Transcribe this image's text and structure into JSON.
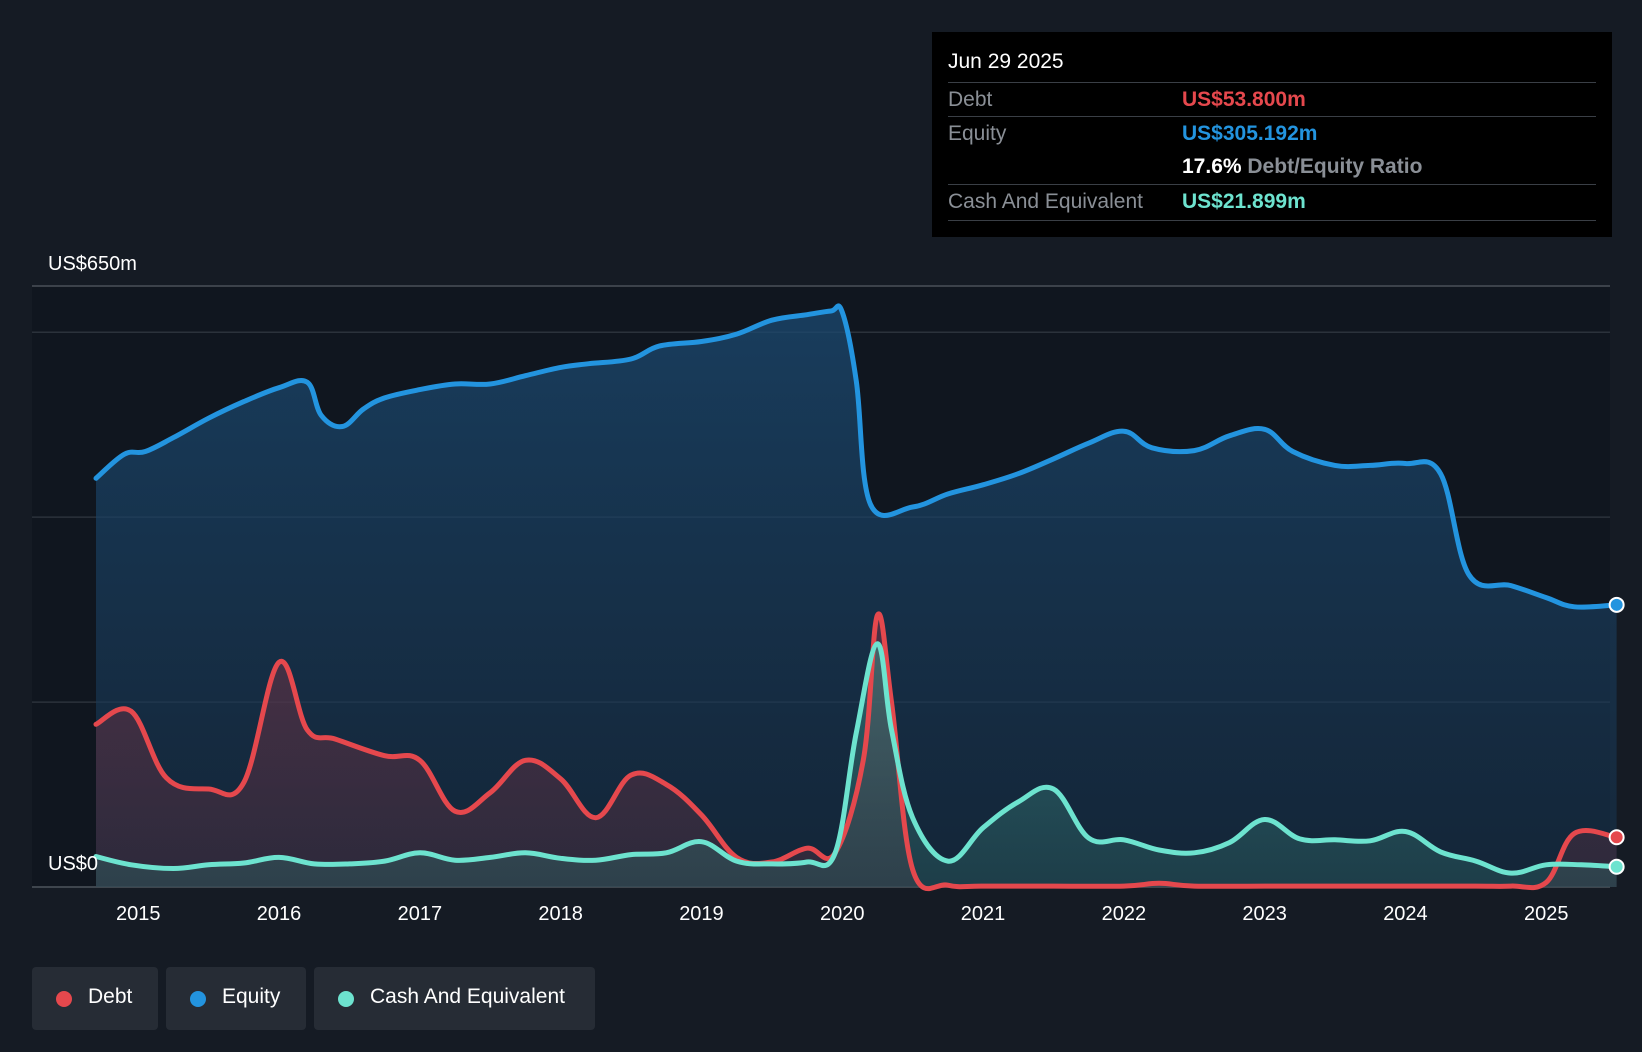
{
  "chart_data": {
    "type": "area",
    "tooltip": {
      "date": "Jun 29 2025",
      "rows": [
        {
          "label": "Debt",
          "value": "US$53.800m"
        },
        {
          "label": "Equity",
          "value": "US$305.192m"
        },
        {
          "label": "",
          "ratio_pct": "17.6%",
          "ratio_label": "Debt/Equity Ratio"
        },
        {
          "label": "Cash And Equivalent",
          "value": "US$21.899m"
        }
      ]
    },
    "y_label_top": "US$650m",
    "y_label_bottom": "US$0",
    "ylim": [
      0,
      650
    ],
    "xlim": [
      2014.7,
      2025.5
    ],
    "x_ticks": [
      "2015",
      "2016",
      "2017",
      "2018",
      "2019",
      "2020",
      "2021",
      "2022",
      "2023",
      "2024",
      "2025"
    ],
    "colors": {
      "debt": "#e5484d",
      "equity": "#2394df",
      "cash": "#6de3cf"
    },
    "series": [
      {
        "name": "Equity",
        "key": "equity",
        "x": [
          2014.7,
          2014.9,
          2015.05,
          2015.25,
          2015.5,
          2015.75,
          2016.0,
          2016.2,
          2016.3,
          2016.45,
          2016.6,
          2016.75,
          2017.0,
          2017.25,
          2017.5,
          2017.75,
          2018.0,
          2018.2,
          2018.5,
          2018.7,
          2019.0,
          2019.25,
          2019.5,
          2019.75,
          2019.92,
          2020.0,
          2020.1,
          2020.2,
          2020.5,
          2020.75,
          2021.0,
          2021.25,
          2021.5,
          2021.75,
          2022.0,
          2022.2,
          2022.5,
          2022.75,
          2023.0,
          2023.2,
          2023.5,
          2023.75,
          2024.0,
          2024.25,
          2024.45,
          2024.75,
          2025.0,
          2025.2,
          2025.5
        ],
        "values": [
          442,
          468,
          471,
          486,
          507,
          525,
          540,
          546,
          510,
          498,
          517,
          529,
          538,
          544,
          544,
          553,
          562,
          566,
          571,
          585,
          590,
          598,
          613,
          619,
          623,
          622,
          547,
          414,
          411,
          425,
          435,
          447,
          463,
          480,
          493,
          475,
          472,
          488,
          495,
          471,
          456,
          456,
          458,
          447,
          338,
          326,
          313,
          303,
          305.192
        ]
      },
      {
        "name": "Debt",
        "key": "debt",
        "x": [
          2014.7,
          2014.95,
          2015.2,
          2015.5,
          2015.75,
          2016.0,
          2016.2,
          2016.4,
          2016.75,
          2017.0,
          2017.25,
          2017.5,
          2017.75,
          2018.0,
          2018.25,
          2018.5,
          2018.75,
          2019.0,
          2019.25,
          2019.5,
          2019.75,
          2019.95,
          2020.15,
          2020.25,
          2020.35,
          2020.5,
          2020.75,
          2021.0,
          2021.5,
          2022.0,
          2022.25,
          2022.5,
          2023.0,
          2023.5,
          2024.0,
          2024.5,
          2024.75,
          2025.0,
          2025.2,
          2025.5
        ],
        "values": [
          176,
          190,
          118,
          106,
          113,
          243,
          170,
          160,
          142,
          137,
          82,
          102,
          137,
          117,
          75,
          121,
          111,
          78,
          32,
          27,
          42,
          37,
          138,
          294,
          200,
          19,
          2,
          1,
          1,
          1,
          4,
          1,
          1,
          1,
          1,
          1,
          1,
          5,
          58,
          53.8
        ]
      },
      {
        "name": "Cash And Equivalent",
        "key": "cash",
        "x": [
          2014.7,
          2014.95,
          2015.25,
          2015.5,
          2015.75,
          2016.0,
          2016.25,
          2016.5,
          2016.75,
          2017.0,
          2017.25,
          2017.5,
          2017.75,
          2018.0,
          2018.25,
          2018.5,
          2018.75,
          2019.0,
          2019.25,
          2019.5,
          2019.75,
          2019.95,
          2020.1,
          2020.25,
          2020.35,
          2020.5,
          2020.75,
          2021.0,
          2021.25,
          2021.5,
          2021.75,
          2022.0,
          2022.25,
          2022.5,
          2022.75,
          2023.0,
          2023.25,
          2023.5,
          2023.75,
          2024.0,
          2024.25,
          2024.5,
          2024.75,
          2025.0,
          2025.25,
          2025.5
        ],
        "values": [
          33,
          24,
          20,
          24,
          26,
          32,
          25,
          25,
          28,
          37,
          29,
          32,
          37,
          31,
          29,
          35,
          37,
          49,
          28,
          25,
          27,
          37,
          167,
          263,
          170,
          75,
          28,
          64,
          92,
          106,
          53,
          51,
          40,
          37,
          48,
          73,
          52,
          51,
          50,
          60,
          38,
          28,
          15,
          24,
          24,
          21.899
        ]
      }
    ],
    "legend": [
      {
        "name": "Debt",
        "key": "debt"
      },
      {
        "name": "Equity",
        "key": "equity"
      },
      {
        "name": "Cash And Equivalent",
        "key": "cash"
      }
    ]
  }
}
